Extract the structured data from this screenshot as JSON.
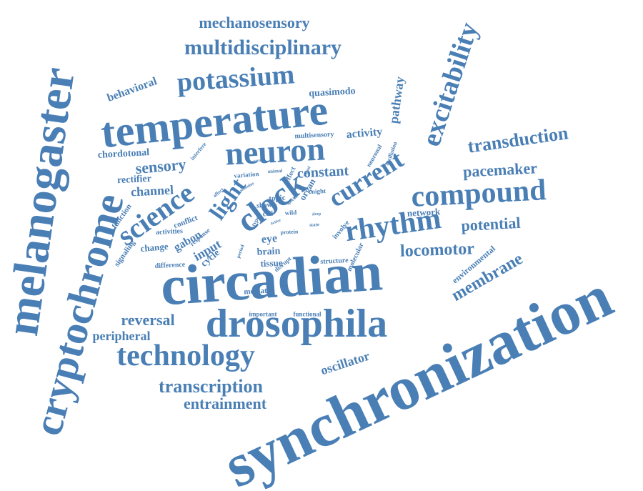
{
  "colors": {
    "word": "#4a7fb5",
    "background": "#ffffff"
  },
  "words": [
    "synchronization",
    "circadian",
    "melanogaster",
    "cryptochrome",
    "temperature",
    "drosophila",
    "neuron",
    "technology",
    "compound",
    "rhythm",
    "clock",
    "potassium",
    "science",
    "multidisciplinary",
    "excitability",
    "mechanosensory",
    "current",
    "light",
    "membrane",
    "transduction",
    "transcription",
    "entrainment",
    "locomotor",
    "potential",
    "pacemaker",
    "sensory",
    "constant",
    "oscillator",
    "reversal",
    "peripheral",
    "pathway",
    "channel",
    "activity",
    "behavioral",
    "quasimodo",
    "chordotonal",
    "rectifier",
    "input",
    "gabon",
    "network",
    "environmental",
    "eye",
    "brain",
    "tissue",
    "cycle",
    "function",
    "signaling",
    "change",
    "activities",
    "conflict",
    "difference",
    "mediate",
    "important",
    "functional",
    "structure",
    "molecular",
    "multisensory",
    "topic",
    "shaw",
    "cell",
    "organ",
    "variation",
    "interfere",
    "neuronal",
    "oscillation",
    "effect",
    "night",
    "wild",
    "protein",
    "involve",
    "response",
    "disrupt",
    "type",
    "animal",
    "affect",
    "state",
    "sleep",
    "active",
    "specific",
    "period",
    "signal",
    "stimulus",
    "control"
  ]
}
